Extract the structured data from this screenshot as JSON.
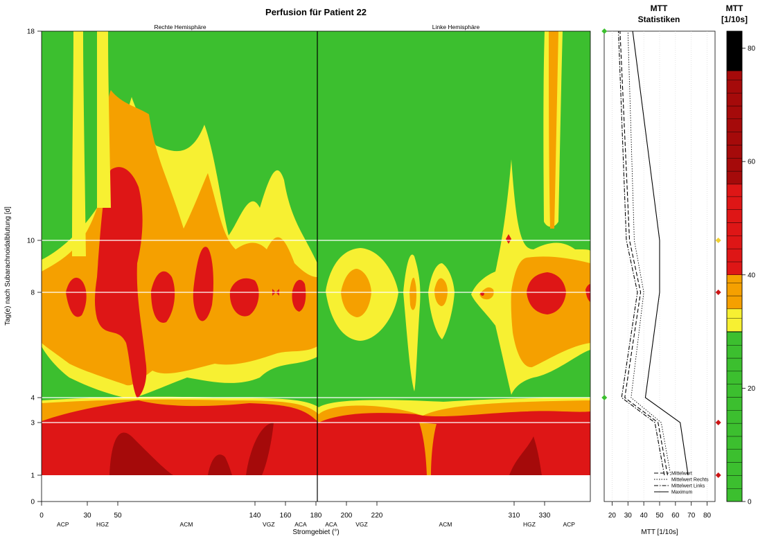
{
  "chart_data": [
    {
      "type": "heatmap",
      "title": "Perfusion für Patient 22",
      "xlabel": "Stromgebiet (°)",
      "ylabel": "Tag(e) nach Subarachnoidalblutung [d]",
      "xlim": [
        0,
        360
      ],
      "y_ticks": [
        0,
        1,
        3,
        4,
        8,
        10,
        18
      ],
      "y_tick_labels": [
        "0",
        "1",
        "3",
        "4",
        "8",
        "10",
        "18"
      ],
      "x_ticks": [
        0,
        30,
        50,
        140,
        160,
        180,
        200,
        220,
        310,
        330
      ],
      "x_tick_labels": [
        "0",
        "30",
        "50",
        "140",
        "160",
        "180",
        "200",
        "220",
        "310",
        "330"
      ],
      "region_labels": [
        {
          "x": 14,
          "label": "ACP"
        },
        {
          "x": 40,
          "label": "HGZ"
        },
        {
          "x": 95,
          "label": "ACM"
        },
        {
          "x": 149,
          "label": "VGZ"
        },
        {
          "x": 170,
          "label": "ACA"
        },
        {
          "x": 190,
          "label": "ACA"
        },
        {
          "x": 210,
          "label": "VGZ"
        },
        {
          "x": 265,
          "label": "ACM"
        },
        {
          "x": 320,
          "label": "HGZ"
        },
        {
          "x": 346,
          "label": "ACP"
        }
      ],
      "hemisphere_labels": [
        "Rechte Hemisphäre",
        "Linke Hemisphäre"
      ],
      "hemisphere_divider_x": 180,
      "measurement_days": [
        3,
        4,
        8,
        10
      ],
      "value_unit": "MTT [1/10s]",
      "color_bands": [
        {
          "range": [
            0,
            30
          ],
          "color": "#3cbf2f"
        },
        {
          "range": [
            30,
            35
          ],
          "color": "#f7f032"
        },
        {
          "range": [
            35,
            40
          ],
          "color": "#f5a000"
        },
        {
          "range": [
            40,
            60
          ],
          "color": "#de1616"
        },
        {
          "range": [
            60,
            85
          ],
          "color": "#a50a0a"
        }
      ],
      "grid": false
    },
    {
      "type": "line",
      "title": "MTT\nStatistiken",
      "title_lines": [
        "MTT",
        "Statistiken"
      ],
      "xlabel": "MTT [1/10s]",
      "xlim": [
        15,
        85
      ],
      "x_ticks": [
        20,
        30,
        40,
        50,
        60,
        70,
        80
      ],
      "ylim": [
        0,
        18
      ],
      "series": [
        {
          "name": "Mittelwert",
          "style": "dashed",
          "x": [
            55,
            49,
            28,
            38,
            31,
            25
          ],
          "y": [
            1,
            3,
            4,
            8,
            10,
            18
          ]
        },
        {
          "name": "Mittelwert Rechts",
          "style": "dotted",
          "x": [
            57,
            51,
            32,
            40,
            34,
            30
          ],
          "y": [
            1,
            3,
            4,
            8,
            10,
            18
          ]
        },
        {
          "name": "Mittelwert Links",
          "style": "dotdash",
          "x": [
            53,
            47,
            26,
            36,
            29,
            24
          ],
          "y": [
            1,
            3,
            4,
            8,
            10,
            18
          ]
        },
        {
          "name": "Maximum",
          "style": "solid",
          "x": [
            68,
            63,
            41,
            50,
            50,
            33
          ],
          "y": [
            1,
            3,
            4,
            8,
            10,
            18
          ]
        }
      ],
      "minimum_markers": [
        {
          "x": 16,
          "y": 4
        },
        {
          "x": 16,
          "y": 18
        }
      ],
      "maximum_markers": [
        {
          "x": 84,
          "y": 10,
          "color": "#f0d030"
        },
        {
          "x": 84,
          "y": 8,
          "color": "#cc1515"
        },
        {
          "x": 84,
          "y": 3,
          "color": "#cc1515"
        },
        {
          "x": 84,
          "y": 1,
          "color": "#cc1515"
        }
      ],
      "legend_position": "bottom-right"
    },
    {
      "type": "colorbar",
      "title": "MTT\n[1/10s]",
      "title_lines": [
        "MTT",
        "[1/10s]"
      ],
      "ticks": [
        0,
        20,
        40,
        60,
        80
      ],
      "range": [
        0,
        83
      ],
      "blocks": [
        {
          "from": 0,
          "to": 30,
          "color": "#3cbf2f"
        },
        {
          "from": 30,
          "to": 34,
          "color": "#f7f032"
        },
        {
          "from": 34,
          "to": 40,
          "color": "#f5a000"
        },
        {
          "from": 40,
          "to": 56,
          "color": "#de1616"
        },
        {
          "from": 56,
          "to": 76,
          "color": "#a50a0a"
        },
        {
          "from": 76,
          "to": 83,
          "color": "#000000"
        }
      ]
    }
  ]
}
